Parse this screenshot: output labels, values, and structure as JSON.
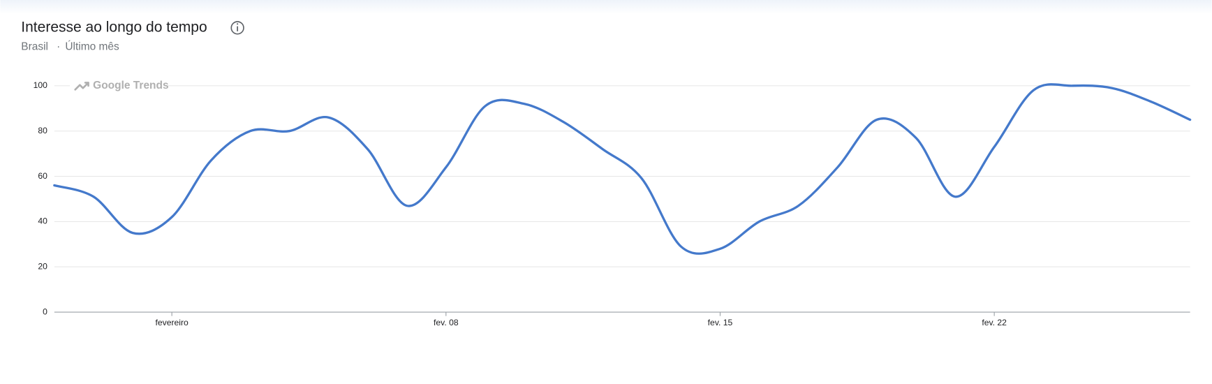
{
  "chart_data": {
    "type": "line",
    "title": "Interesse ao longo do tempo",
    "region": "Brasil",
    "period": "Último mês",
    "watermark": "Google Trends",
    "categories": [
      null,
      null,
      null,
      "fevereiro",
      null,
      null,
      null,
      null,
      null,
      null,
      "fev. 08",
      null,
      null,
      null,
      null,
      null,
      null,
      "fev. 15",
      null,
      null,
      null,
      null,
      null,
      null,
      "fev. 22",
      null,
      null,
      null,
      null,
      null
    ],
    "series": [
      {
        "name": "Interesse",
        "color": "#4479cb",
        "values": [
          56,
          51,
          35,
          42,
          67,
          80,
          80,
          86,
          72,
          47,
          64,
          91,
          92,
          84,
          72,
          59,
          29,
          28,
          40,
          47,
          64,
          85,
          77,
          51,
          73,
          98,
          100,
          99,
          93,
          85
        ]
      }
    ],
    "ylim": [
      0,
      100
    ],
    "yticks": [
      0,
      20,
      40,
      60,
      80,
      100
    ],
    "grid": true
  }
}
